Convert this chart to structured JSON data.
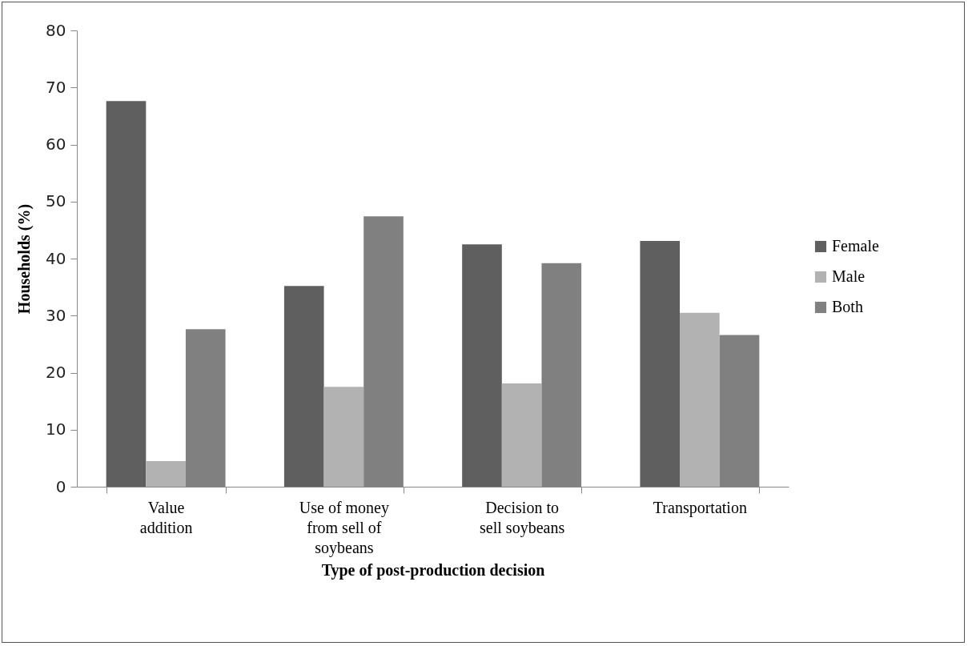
{
  "chart_data": {
    "type": "bar",
    "xlabel": "Type of post-production  decision",
    "ylabel": "Households (%)",
    "categories": [
      "Value  addition",
      "Use of money from sell of soybeans",
      "Decision  to sell soybeans",
      "Transportation"
    ],
    "series": [
      {
        "name": "Female",
        "color": "#5f5f5f",
        "values": [
          67.6,
          35.2,
          42.5,
          43.1
        ]
      },
      {
        "name": "Male",
        "color": "#b2b2b2",
        "values": [
          4.5,
          17.5,
          18.1,
          30.5
        ]
      },
      {
        "name": "Both",
        "color": "#808080",
        "values": [
          27.6,
          47.4,
          39.2,
          26.6
        ]
      }
    ],
    "ylim": [
      0,
      80
    ],
    "yticks": [
      0,
      10,
      20,
      30,
      40,
      50,
      60,
      70,
      80
    ],
    "grid": false,
    "legend": "right"
  }
}
